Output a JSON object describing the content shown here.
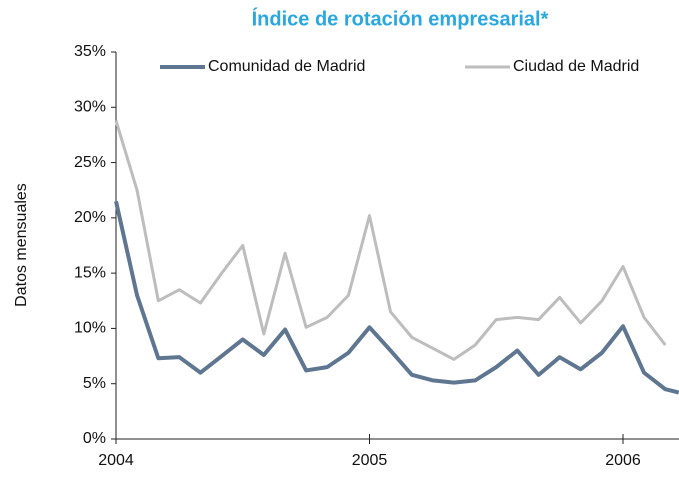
{
  "chart_data": {
    "type": "line",
    "title": "Índice de rotación empresarial*",
    "y_label": "Datos mensuales",
    "x": [
      2004,
      2004.083,
      2004.167,
      2004.25,
      2004.333,
      2004.417,
      2004.5,
      2004.583,
      2004.667,
      2004.75,
      2004.833,
      2004.917,
      2005,
      2005.083,
      2005.167,
      2005.25,
      2005.333,
      2005.417,
      2005.5,
      2005.583,
      2005.667,
      2005.75,
      2005.833,
      2005.917,
      2006,
      2006.083,
      2006.167,
      2006.22
    ],
    "series": [
      {
        "name": "Comunidad de Madrid",
        "color": "#5f7691",
        "values": [
          21.5,
          13,
          7.3,
          7.4,
          6.0,
          7.5,
          9.0,
          7.6,
          9.9,
          6.2,
          6.5,
          7.8,
          10.1,
          8.0,
          5.8,
          5.3,
          5.1,
          5.3,
          6.5,
          8.0,
          5.8,
          7.4,
          6.3,
          7.8,
          10.2,
          6.0,
          4.5,
          4.2
        ]
      },
      {
        "name": "Ciudad de Madrid",
        "color": "#bdbdbd",
        "values": [
          28.8,
          22.5,
          12.5,
          13.5,
          12.3,
          15,
          17.5,
          9.5,
          16.8,
          10.1,
          11,
          13,
          20.2,
          11.5,
          9.2,
          8.2,
          7.2,
          8.5,
          10.8,
          11.0,
          10.8,
          12.8,
          10.5,
          12.5,
          15.6,
          11,
          8.5,
          null
        ]
      }
    ],
    "xlim": [
      2004,
      2006.22
    ],
    "xticks": [
      2004,
      2005,
      2006
    ],
    "ylim": [
      0,
      35
    ],
    "yticks": [
      {
        "value": 0,
        "label": "0%"
      },
      {
        "value": 5,
        "label": "5%"
      },
      {
        "value": 10,
        "label": "10%"
      },
      {
        "value": 15,
        "label": "15%"
      },
      {
        "value": 20,
        "label": "20%"
      },
      {
        "value": 25,
        "label": "25%"
      },
      {
        "value": 30,
        "label": "30%"
      },
      {
        "value": 35,
        "label": "35%"
      }
    ],
    "grid": false
  }
}
